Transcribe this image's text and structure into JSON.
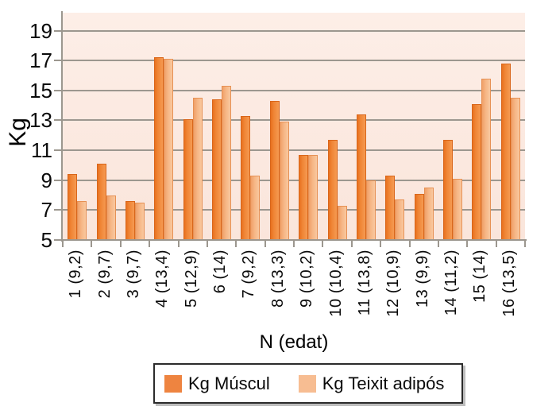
{
  "chart_data": {
    "type": "bar",
    "title": "",
    "xlabel": "N (edat)",
    "ylabel": "Kg",
    "ylim": [
      5,
      20.2
    ],
    "yticks": [
      5,
      7,
      9,
      11,
      13,
      15,
      17,
      19
    ],
    "grid": true,
    "legend_position": "bottom-center",
    "categories": [
      "1 (9,2)",
      "2 (9,7)",
      "3 (9,7)",
      "4 (13,4)",
      "5 (12,9)",
      "6 (14)",
      "7 (9,2)",
      "8 (13,3)",
      "9 (10,2)",
      "10 (10,4)",
      "11 (13,8)",
      "12 (10,9)",
      "13 (9,9)",
      "14 (11,2)",
      "15 (14)",
      "16 (13,5)"
    ],
    "series": [
      {
        "name": "Kg Múscul",
        "color": "#ee8236",
        "values": [
          9.4,
          10.1,
          7.6,
          17.2,
          13.1,
          14.4,
          13.3,
          14.3,
          10.7,
          11.7,
          13.4,
          9.3,
          8.1,
          11.7,
          14.1,
          16.8
        ]
      },
      {
        "name": "Kg Teixit adipós",
        "color": "#f7b88d",
        "values": [
          7.6,
          8.0,
          7.5,
          17.1,
          14.5,
          15.3,
          9.3,
          12.9,
          10.7,
          7.3,
          9.0,
          7.7,
          8.5,
          9.1,
          15.8,
          14.5
        ]
      }
    ]
  },
  "colors": {
    "muscul_fill": "#ee8236",
    "muscul_edge": "#d9661a",
    "adipos_fill": "#f7b88d",
    "adipos_edge": "#e69155",
    "plot_background": "#fbe8df",
    "gridline": "#9c978f",
    "axis": "#9c978f",
    "text": "#0a0a0a"
  }
}
